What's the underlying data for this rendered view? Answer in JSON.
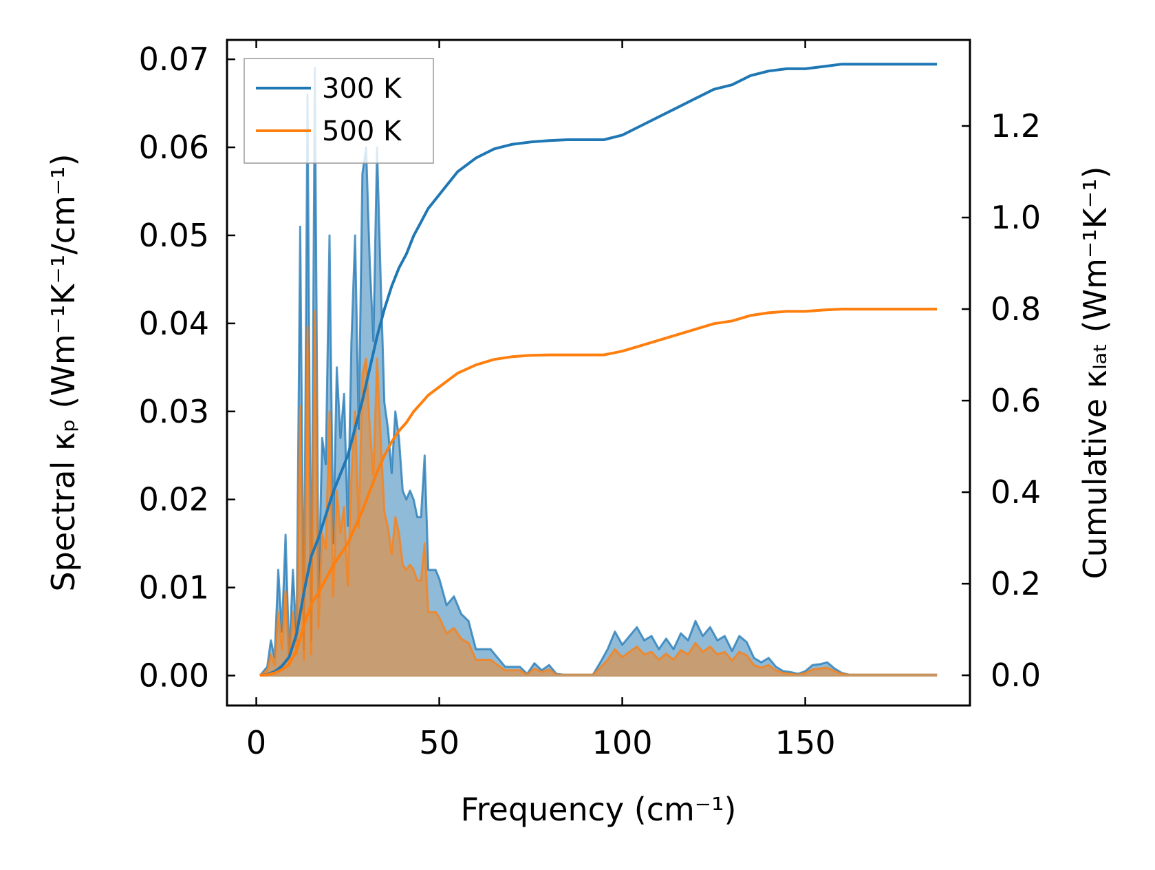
{
  "chart_data": {
    "type": "line",
    "xlabel": "Frequency (cm⁻¹)",
    "ylabel_left": "Spectral κₚ (Wm⁻¹K⁻¹/cm⁻¹)",
    "ylabel_right": "Cumulative κₗₐₜ (Wm⁻¹K⁻¹)",
    "xlim": [
      -8,
      195
    ],
    "ylim_left": [
      -0.0034,
      0.0722
    ],
    "ylim_right": [
      -0.066,
      1.388
    ],
    "x_ticks": [
      0,
      50,
      100,
      150
    ],
    "x_tick_labels": [
      "0",
      "50",
      "100",
      "150"
    ],
    "y_left_ticks": [
      0,
      0.01,
      0.02,
      0.03,
      0.04,
      0.05,
      0.06,
      0.07
    ],
    "y_left_tick_labels": [
      "0.00",
      "0.01",
      "0.02",
      "0.03",
      "0.04",
      "0.05",
      "0.06",
      "0.07"
    ],
    "y_right_ticks": [
      0,
      0.2,
      0.4,
      0.6,
      0.8,
      1.0,
      1.2
    ],
    "y_right_tick_labels": [
      "0.0",
      "0.2",
      "0.4",
      "0.6",
      "0.8",
      "1.0",
      "1.2"
    ],
    "legend": {
      "position": "top-left",
      "entries": [
        "300 K",
        "500 K"
      ]
    },
    "colors": {
      "300 K": "#1f77b4",
      "500 K": "#ff7f0e"
    },
    "series": [
      {
        "name": "300 K",
        "spectral_x": [
          1,
          3,
          4,
          5,
          6,
          7,
          8,
          9,
          10,
          11,
          12,
          13,
          14,
          15,
          16,
          17,
          18,
          19,
          20,
          21,
          22,
          23,
          24,
          25,
          26,
          27,
          28,
          29,
          30,
          31,
          32,
          33,
          34,
          35,
          36,
          37,
          38,
          39,
          40,
          41,
          42,
          43,
          44,
          45,
          46,
          47,
          48,
          49,
          50,
          52,
          54,
          56,
          58,
          60,
          62,
          64,
          66,
          68,
          70,
          72,
          74,
          76,
          78,
          80,
          82,
          84,
          86,
          88,
          90,
          92,
          94,
          96,
          98,
          100,
          102,
          104,
          106,
          108,
          110,
          112,
          114,
          116,
          118,
          120,
          122,
          124,
          126,
          128,
          130,
          132,
          134,
          136,
          138,
          140,
          142,
          144,
          146,
          148,
          150,
          152,
          154,
          156,
          158,
          160,
          162,
          164,
          166,
          168,
          170,
          175,
          180,
          186
        ],
        "spectral_y": [
          0,
          0.001,
          0.004,
          0.002,
          0.012,
          0.005,
          0.016,
          0.002,
          0.012,
          0.004,
          0.051,
          0.003,
          0.066,
          0.004,
          0.069,
          0.009,
          0.027,
          0.024,
          0.05,
          0.015,
          0.035,
          0.027,
          0.032,
          0.017,
          0.038,
          0.05,
          0.028,
          0.057,
          0.06,
          0.047,
          0.038,
          0.06,
          0.045,
          0.031,
          0.028,
          0.023,
          0.03,
          0.027,
          0.021,
          0.02,
          0.021,
          0.02,
          0.018,
          0.018,
          0.025,
          0.012,
          0.012,
          0.012,
          0.011,
          0.008,
          0.009,
          0.007,
          0.0062,
          0.003,
          0.003,
          0.003,
          0.002,
          0.001,
          0.001,
          0.001,
          0.0002,
          0.0014,
          0.0006,
          0.0012,
          0.0002,
          0.0001,
          0.0001,
          0.0001,
          0.0001,
          0.0001,
          0.0015,
          0.003,
          0.005,
          0.0035,
          0.0045,
          0.0055,
          0.004,
          0.0045,
          0.003,
          0.0042,
          0.003,
          0.0048,
          0.004,
          0.0062,
          0.0045,
          0.0055,
          0.004,
          0.0045,
          0.0028,
          0.0045,
          0.0038,
          0.002,
          0.0015,
          0.002,
          0.001,
          0.0005,
          0.0004,
          0.0002,
          0.0005,
          0.0012,
          0.0013,
          0.0015,
          0.0008,
          0.0003,
          0.0001,
          0.0001,
          0.0001,
          0.0001,
          0.0001,
          0.0001,
          0.0001,
          0.0001
        ],
        "cumulative_x": [
          1,
          3,
          5,
          7,
          9,
          11,
          13,
          15,
          17,
          19,
          21,
          23,
          25,
          27,
          29,
          31,
          33,
          35,
          37,
          39,
          41,
          43,
          45,
          47,
          50,
          55,
          60,
          65,
          70,
          75,
          80,
          85,
          90,
          95,
          100,
          105,
          110,
          115,
          120,
          125,
          130,
          135,
          140,
          145,
          150,
          155,
          160,
          165,
          170,
          175,
          180,
          186
        ],
        "cumulative_y": [
          0,
          0.002,
          0.008,
          0.02,
          0.04,
          0.09,
          0.18,
          0.26,
          0.3,
          0.35,
          0.4,
          0.44,
          0.48,
          0.54,
          0.6,
          0.67,
          0.74,
          0.8,
          0.85,
          0.89,
          0.92,
          0.96,
          0.99,
          1.02,
          1.05,
          1.1,
          1.13,
          1.15,
          1.16,
          1.165,
          1.168,
          1.17,
          1.17,
          1.17,
          1.18,
          1.2,
          1.22,
          1.24,
          1.26,
          1.28,
          1.29,
          1.31,
          1.32,
          1.325,
          1.325,
          1.33,
          1.335,
          1.335,
          1.335,
          1.335,
          1.335,
          1.335
        ]
      },
      {
        "name": "500 K",
        "spectral_x": [
          1,
          3,
          4,
          5,
          6,
          7,
          8,
          9,
          10,
          11,
          12,
          13,
          14,
          15,
          16,
          17,
          18,
          19,
          20,
          21,
          22,
          23,
          24,
          25,
          26,
          27,
          28,
          29,
          30,
          31,
          32,
          33,
          34,
          35,
          36,
          37,
          38,
          39,
          40,
          41,
          42,
          43,
          44,
          45,
          46,
          47,
          48,
          49,
          50,
          52,
          54,
          56,
          58,
          60,
          62,
          64,
          66,
          68,
          70,
          72,
          74,
          76,
          78,
          80,
          82,
          84,
          86,
          88,
          90,
          92,
          94,
          96,
          98,
          100,
          102,
          104,
          106,
          108,
          110,
          112,
          114,
          116,
          118,
          120,
          122,
          124,
          126,
          128,
          130,
          132,
          134,
          136,
          138,
          140,
          142,
          144,
          146,
          148,
          150,
          152,
          154,
          156,
          158,
          160,
          162,
          164,
          166,
          168,
          170,
          175,
          180,
          186
        ],
        "spectral_y": [
          0,
          0.0006,
          0.0024,
          0.0012,
          0.0072,
          0.003,
          0.0096,
          0.0012,
          0.0072,
          0.0024,
          0.0306,
          0.0018,
          0.0396,
          0.0024,
          0.0414,
          0.0054,
          0.0162,
          0.0144,
          0.03,
          0.009,
          0.021,
          0.0162,
          0.0192,
          0.0102,
          0.0228,
          0.03,
          0.0168,
          0.0342,
          0.036,
          0.0282,
          0.0228,
          0.036,
          0.027,
          0.0186,
          0.0168,
          0.0138,
          0.018,
          0.0162,
          0.0126,
          0.012,
          0.0126,
          0.012,
          0.0108,
          0.0108,
          0.015,
          0.0072,
          0.0072,
          0.0072,
          0.0066,
          0.0048,
          0.0054,
          0.0042,
          0.0037,
          0.0018,
          0.0018,
          0.0018,
          0.0012,
          0.0006,
          0.0006,
          0.0006,
          0.0001,
          0.0008,
          0.0004,
          0.0007,
          0.0001,
          0.0001,
          0.0001,
          0.0001,
          0.0001,
          0.0001,
          0.0009,
          0.0018,
          0.003,
          0.0021,
          0.0027,
          0.0033,
          0.0024,
          0.0027,
          0.0018,
          0.0025,
          0.0018,
          0.0029,
          0.0024,
          0.0037,
          0.0027,
          0.0033,
          0.0024,
          0.0027,
          0.0017,
          0.0027,
          0.0023,
          0.0012,
          0.0009,
          0.0012,
          0.0006,
          0.0003,
          0.0002,
          0.0001,
          0.0003,
          0.0007,
          0.0008,
          0.0009,
          0.0005,
          0.0002,
          0.0001,
          0.0001,
          0.0001,
          0.0001,
          0.0001,
          0.0001,
          0.0001,
          0.0001
        ],
        "cumulative_x": [
          1,
          3,
          5,
          7,
          9,
          11,
          13,
          15,
          17,
          19,
          21,
          23,
          25,
          27,
          29,
          31,
          33,
          35,
          37,
          39,
          41,
          43,
          45,
          47,
          50,
          55,
          60,
          65,
          70,
          75,
          80,
          85,
          90,
          95,
          100,
          105,
          110,
          115,
          120,
          125,
          130,
          135,
          140,
          145,
          150,
          155,
          160,
          165,
          170,
          175,
          180,
          186
        ],
        "cumulative_y": [
          0,
          0.001,
          0.005,
          0.012,
          0.024,
          0.054,
          0.108,
          0.156,
          0.18,
          0.21,
          0.24,
          0.264,
          0.288,
          0.324,
          0.36,
          0.402,
          0.444,
          0.48,
          0.51,
          0.534,
          0.552,
          0.576,
          0.594,
          0.612,
          0.63,
          0.66,
          0.678,
          0.69,
          0.696,
          0.699,
          0.7,
          0.7,
          0.7,
          0.7,
          0.708,
          0.72,
          0.732,
          0.744,
          0.756,
          0.768,
          0.774,
          0.786,
          0.792,
          0.795,
          0.795,
          0.798,
          0.8,
          0.8,
          0.8,
          0.8,
          0.8,
          0.8
        ]
      }
    ]
  }
}
